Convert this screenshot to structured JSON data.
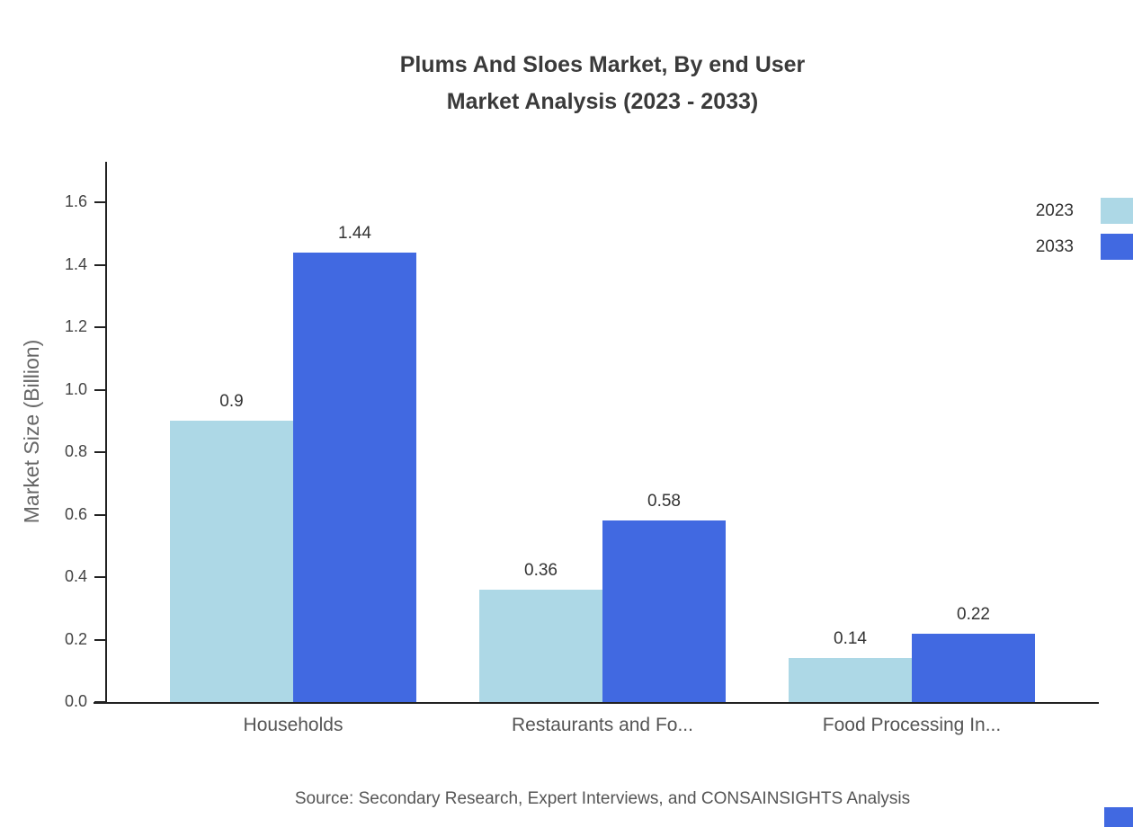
{
  "title": {
    "line1": "Plums And Sloes Market, By end User",
    "line2": "Market Analysis (2023 - 2033)"
  },
  "source": "Source: Secondary Research, Expert Interviews, and CONSAINSIGHTS Analysis",
  "colors": {
    "series_2023": "#add8e6",
    "series_2033": "#4169e1",
    "axis": "#222222",
    "text": "#3a3a3a"
  },
  "chart_data": {
    "type": "bar",
    "categories": [
      "Households",
      "Restaurants and Fo...",
      "Food Processing In..."
    ],
    "series": [
      {
        "name": "2023",
        "color": "#add8e6",
        "values": [
          0.9,
          0.36,
          0.14
        ]
      },
      {
        "name": "2033",
        "color": "#4169e1",
        "values": [
          1.44,
          0.58,
          0.22
        ]
      }
    ],
    "title": "Plums And Sloes Market, By end User Market Analysis (2023 - 2033)",
    "xlabel": "",
    "ylabel": "Market Size (Billion)",
    "ylim": [
      0,
      1.73
    ],
    "yticks": [
      0.0,
      0.2,
      0.4,
      0.6,
      0.8,
      1.0,
      1.2,
      1.4,
      1.6
    ],
    "grid": false,
    "legend_position": "top-right"
  }
}
